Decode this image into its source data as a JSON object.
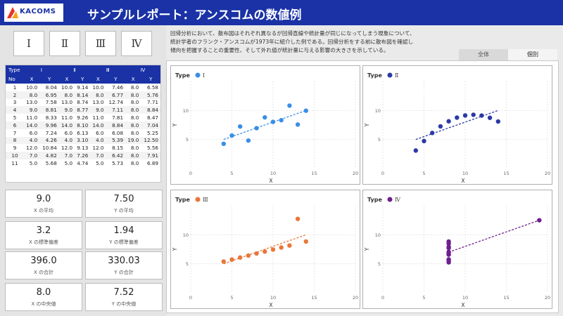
{
  "header": {
    "logo": "KACOMS",
    "title": "サンプルレポート：アンスコムの数値例",
    "colors": {
      "header_bg": "#1a32a6",
      "logo_red": "#e8352a",
      "logo_orange": "#f6a21a"
    }
  },
  "type_buttons": [
    "Ⅰ",
    "Ⅱ",
    "Ⅲ",
    "Ⅳ"
  ],
  "table": {
    "group_header_label": "Type",
    "sub_header_label": "No",
    "groups": [
      "Ⅰ",
      "Ⅱ",
      "Ⅲ",
      "Ⅳ"
    ],
    "sub_cols": [
      "X",
      "Y"
    ],
    "rows": [
      {
        "no": "1",
        "v": [
          "10.0",
          "8.04",
          "10.0",
          "9.14",
          "10.0",
          "7.46",
          "8.0",
          "6.58"
        ]
      },
      {
        "no": "2",
        "v": [
          "8.0",
          "6.95",
          "8.0",
          "8.14",
          "8.0",
          "6.77",
          "8.0",
          "5.76"
        ]
      },
      {
        "no": "3",
        "v": [
          "13.0",
          "7.58",
          "13.0",
          "8.74",
          "13.0",
          "12.74",
          "8.0",
          "7.71"
        ]
      },
      {
        "no": "4",
        "v": [
          "9.0",
          "8.81",
          "9.0",
          "8.77",
          "9.0",
          "7.11",
          "8.0",
          "8.84"
        ]
      },
      {
        "no": "5",
        "v": [
          "11.0",
          "8.33",
          "11.0",
          "9.26",
          "11.0",
          "7.81",
          "8.0",
          "8.47"
        ]
      },
      {
        "no": "6",
        "v": [
          "14.0",
          "9.96",
          "14.0",
          "8.10",
          "14.0",
          "8.84",
          "8.0",
          "7.04"
        ]
      },
      {
        "no": "7",
        "v": [
          "6.0",
          "7.24",
          "6.0",
          "6.13",
          "6.0",
          "6.08",
          "8.0",
          "5.25"
        ]
      },
      {
        "no": "8",
        "v": [
          "4.0",
          "4.26",
          "4.0",
          "3.10",
          "4.0",
          "5.39",
          "19.0",
          "12.50"
        ]
      },
      {
        "no": "9",
        "v": [
          "12.0",
          "10.84",
          "12.0",
          "9.13",
          "12.0",
          "8.15",
          "8.0",
          "5.56"
        ]
      },
      {
        "no": "10",
        "v": [
          "7.0",
          "4.82",
          "7.0",
          "7.26",
          "7.0",
          "6.42",
          "8.0",
          "7.91"
        ]
      },
      {
        "no": "11",
        "v": [
          "5.0",
          "5.68",
          "5.0",
          "4.74",
          "5.0",
          "5.73",
          "8.0",
          "6.89"
        ]
      }
    ]
  },
  "stats": [
    {
      "value": "9.0",
      "label": "X の平均"
    },
    {
      "value": "7.50",
      "label": "Y の平均"
    },
    {
      "value": "3.2",
      "label": "X の標準偏差"
    },
    {
      "value": "1.94",
      "label": "Y の標準偏差"
    },
    {
      "value": "396.0",
      "label": "X の合計"
    },
    {
      "value": "330.03",
      "label": "Y の合計"
    },
    {
      "value": "8.0",
      "label": "X の中央値"
    },
    {
      "value": "7.52",
      "label": "Y の中央値"
    }
  ],
  "description": {
    "line1": "回帰分析において、散布図はそれぞれ異なるが回帰直線や統計量が同じになってしまう現象について、",
    "line2": "統計学者のフランク・アンスコムが1973年に紹介した例である。回帰分析をする前に散布図を確認し",
    "line3": "傾向を把握することの重要性、そして外れ値が統計量に与える影響の大きさを示している。"
  },
  "tabs": [
    {
      "label": "全体",
      "active": false
    },
    {
      "label": "個別",
      "active": true
    }
  ],
  "chart_data": [
    {
      "type": "scatter",
      "legend_title": "Type",
      "series_name": "Ⅰ",
      "color": "#3a8ee6",
      "xlabel": "X",
      "ylabel": "Y",
      "xlim": [
        0,
        20
      ],
      "ylim": [
        0,
        15
      ],
      "xticks": [
        0,
        5,
        10,
        15,
        20
      ],
      "yticks": [
        5,
        10
      ],
      "grid": true,
      "x": [
        10,
        8,
        13,
        9,
        11,
        14,
        6,
        4,
        12,
        7,
        5
      ],
      "y": [
        8.04,
        6.95,
        7.58,
        8.81,
        8.33,
        9.96,
        7.24,
        4.26,
        10.84,
        4.82,
        5.68
      ],
      "trend": {
        "intercept": 3.0,
        "slope": 0.5
      }
    },
    {
      "type": "scatter",
      "legend_title": "Type",
      "series_name": "Ⅱ",
      "color": "#2a3aa8",
      "xlabel": "X",
      "ylabel": "Y",
      "xlim": [
        0,
        20
      ],
      "ylim": [
        0,
        15
      ],
      "xticks": [
        0,
        5,
        10,
        15,
        20
      ],
      "yticks": [
        5,
        10
      ],
      "grid": true,
      "x": [
        10,
        8,
        13,
        9,
        11,
        14,
        6,
        4,
        12,
        7,
        5
      ],
      "y": [
        9.14,
        8.14,
        8.74,
        8.77,
        9.26,
        8.1,
        6.13,
        3.1,
        9.13,
        7.26,
        4.74
      ],
      "trend": {
        "intercept": 3.0,
        "slope": 0.5
      }
    },
    {
      "type": "scatter",
      "legend_title": "Type",
      "series_name": "Ⅲ",
      "color": "#e8773a",
      "xlabel": "X",
      "ylabel": "Y",
      "xlim": [
        0,
        20
      ],
      "ylim": [
        0,
        15
      ],
      "xticks": [
        0,
        5,
        10,
        15,
        20
      ],
      "yticks": [
        5,
        10
      ],
      "grid": true,
      "x": [
        10,
        8,
        13,
        9,
        11,
        14,
        6,
        4,
        12,
        7,
        5
      ],
      "y": [
        7.46,
        6.77,
        12.74,
        7.11,
        7.81,
        8.84,
        6.08,
        5.39,
        8.15,
        6.42,
        5.73
      ],
      "trend": {
        "intercept": 3.0,
        "slope": 0.5
      }
    },
    {
      "type": "scatter",
      "legend_title": "Type",
      "series_name": "Ⅳ",
      "color": "#6e1f8e",
      "xlabel": "X",
      "ylabel": "Y",
      "xlim": [
        0,
        20
      ],
      "ylim": [
        0,
        15
      ],
      "xticks": [
        0,
        5,
        10,
        15,
        20
      ],
      "yticks": [
        5,
        10
      ],
      "grid": true,
      "x": [
        8,
        8,
        8,
        8,
        8,
        8,
        8,
        19,
        8,
        8,
        8
      ],
      "y": [
        6.58,
        5.76,
        7.71,
        8.84,
        8.47,
        7.04,
        5.25,
        12.5,
        5.56,
        7.91,
        6.89
      ],
      "trend": {
        "intercept": 3.0,
        "slope": 0.5
      }
    }
  ]
}
